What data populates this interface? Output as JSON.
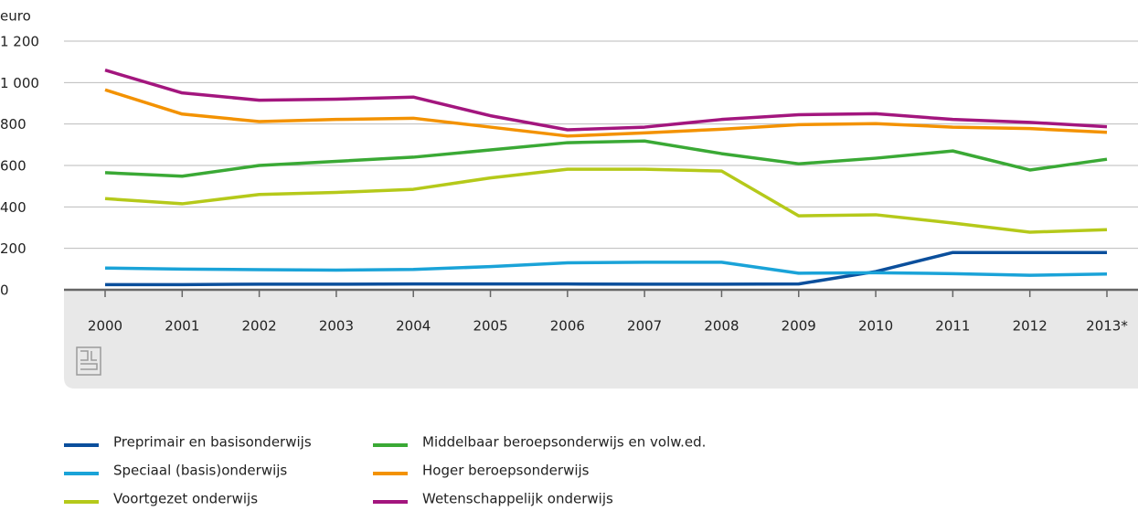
{
  "chart_data": {
    "type": "line",
    "y_label": "euro",
    "categories": [
      "2000",
      "2001",
      "2002",
      "2003",
      "2004",
      "2005",
      "2006",
      "2007",
      "2008",
      "2009",
      "2010",
      "2011",
      "2012",
      "2013*"
    ],
    "ylim": [
      0,
      1200
    ],
    "yticks": [
      0,
      200,
      400,
      600,
      800,
      {
        "value": 1000,
        "label": "1 000"
      },
      {
        "value": 1200,
        "label": "1 200"
      }
    ],
    "grid": true,
    "legend": "bottom",
    "series": [
      {
        "name": "Preprimair en basisonderwijs",
        "color": "#0b4f9c",
        "values": [
          25,
          25,
          27,
          27,
          28,
          28,
          28,
          27,
          27,
          28,
          88,
          180,
          180,
          180
        ]
      },
      {
        "name": "Speciaal (basis)onderwijs",
        "color": "#1aa3d8",
        "values": [
          105,
          100,
          97,
          95,
          98,
          112,
          130,
          133,
          133,
          80,
          82,
          78,
          70,
          76
        ]
      },
      {
        "name": "Voortgezet onderwijs",
        "color": "#b5c91a",
        "values": [
          440,
          415,
          460,
          470,
          485,
          540,
          582,
          582,
          573,
          357,
          362,
          322,
          278,
          290
        ]
      },
      {
        "name": "Middelbaar beroepsonderwijs en volw.ed.",
        "color": "#3aa935",
        "values": [
          565,
          548,
          600,
          620,
          640,
          675,
          710,
          718,
          657,
          608,
          635,
          670,
          578,
          630
        ]
      },
      {
        "name": "Hoger beroepsonderwijs",
        "color": "#f39200",
        "values": [
          965,
          848,
          812,
          822,
          828,
          785,
          742,
          757,
          775,
          797,
          802,
          785,
          778,
          760
        ]
      },
      {
        "name": "Wetenschappelijk onderwijs",
        "color": "#a3167e",
        "values": [
          1060,
          950,
          915,
          920,
          930,
          840,
          772,
          785,
          822,
          845,
          850,
          822,
          808,
          787
        ]
      }
    ]
  }
}
